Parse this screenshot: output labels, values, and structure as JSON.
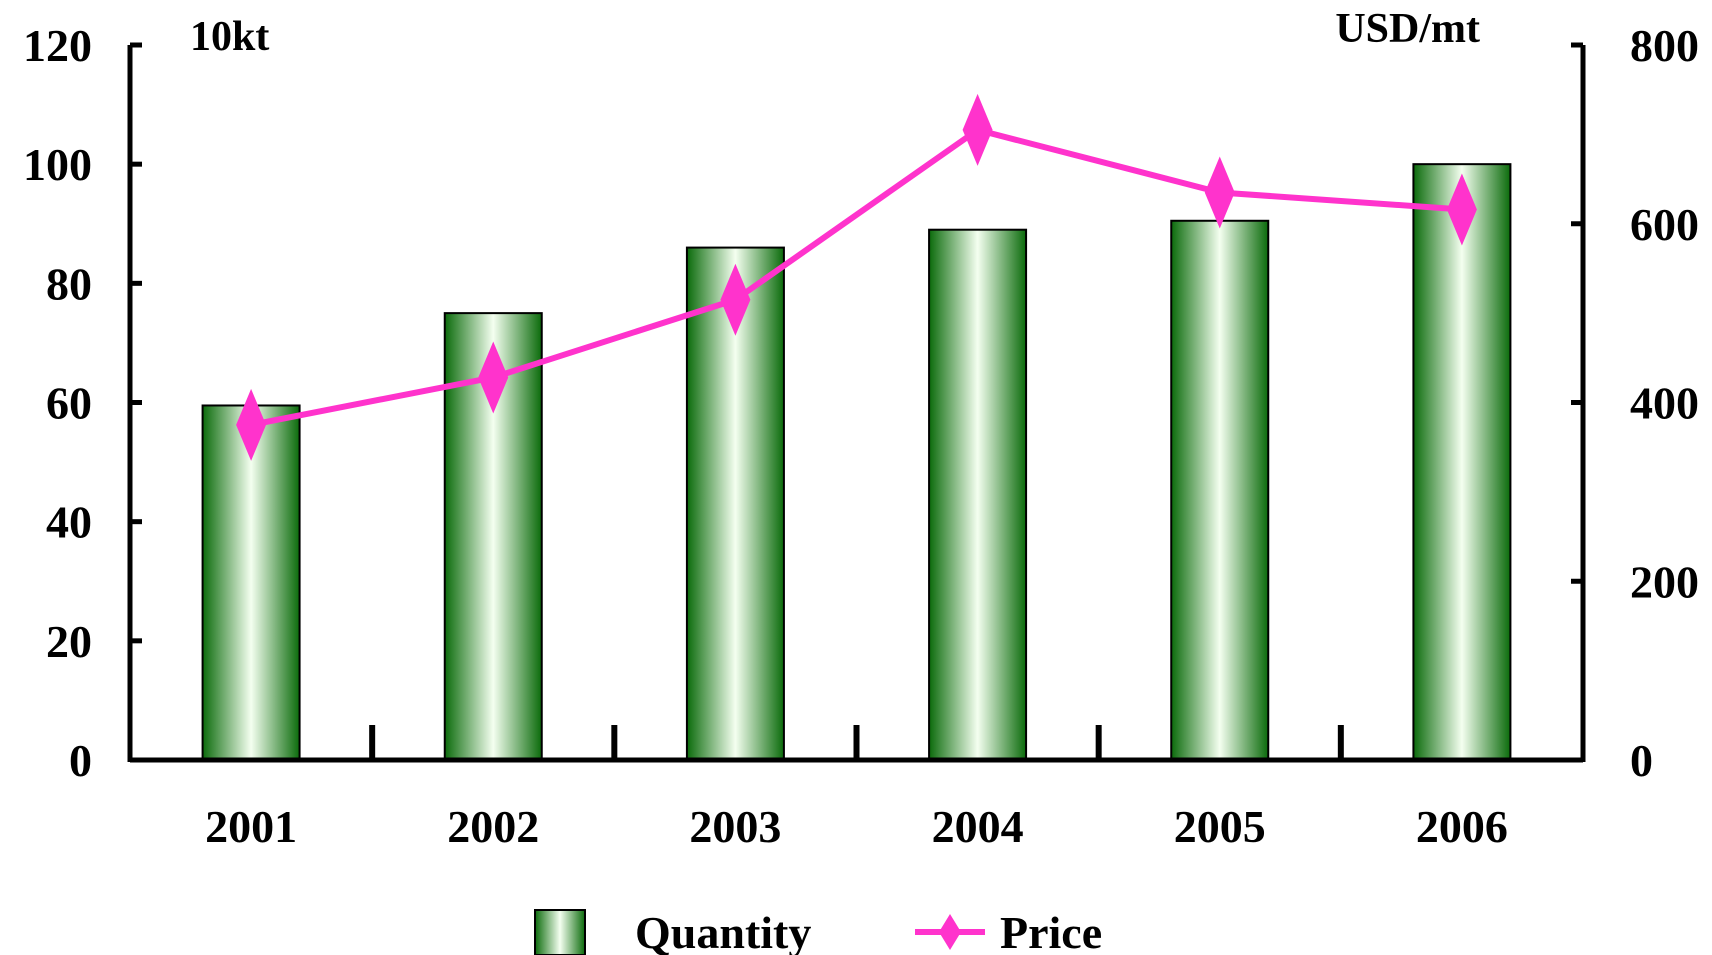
{
  "chart_data": {
    "type": "bar",
    "categories": [
      "2001",
      "2002",
      "2003",
      "2004",
      "2005",
      "2006"
    ],
    "series": [
      {
        "name": "Quantity",
        "type": "bar",
        "axis": "left",
        "values": [
          59.5,
          75,
          86,
          89,
          90.5,
          100
        ]
      },
      {
        "name": "Price",
        "type": "line",
        "axis": "right",
        "values": [
          375,
          428,
          515,
          705,
          635,
          616
        ]
      }
    ],
    "left_axis": {
      "unit": "10kt",
      "range": [
        0,
        120
      ],
      "ticks": [
        "0",
        "20",
        "40",
        "60",
        "80",
        "100",
        "120"
      ]
    },
    "right_axis": {
      "unit": "USD/mt",
      "range": [
        0,
        800
      ],
      "ticks": [
        "0",
        "200",
        "400",
        "600",
        "800"
      ]
    },
    "grid": false,
    "legend_position": "bottom",
    "colors": {
      "bar_dark": "#0b6b0b",
      "bar_light": "#f4fff0",
      "line": "#ff33cc",
      "axis": "#000000"
    }
  }
}
